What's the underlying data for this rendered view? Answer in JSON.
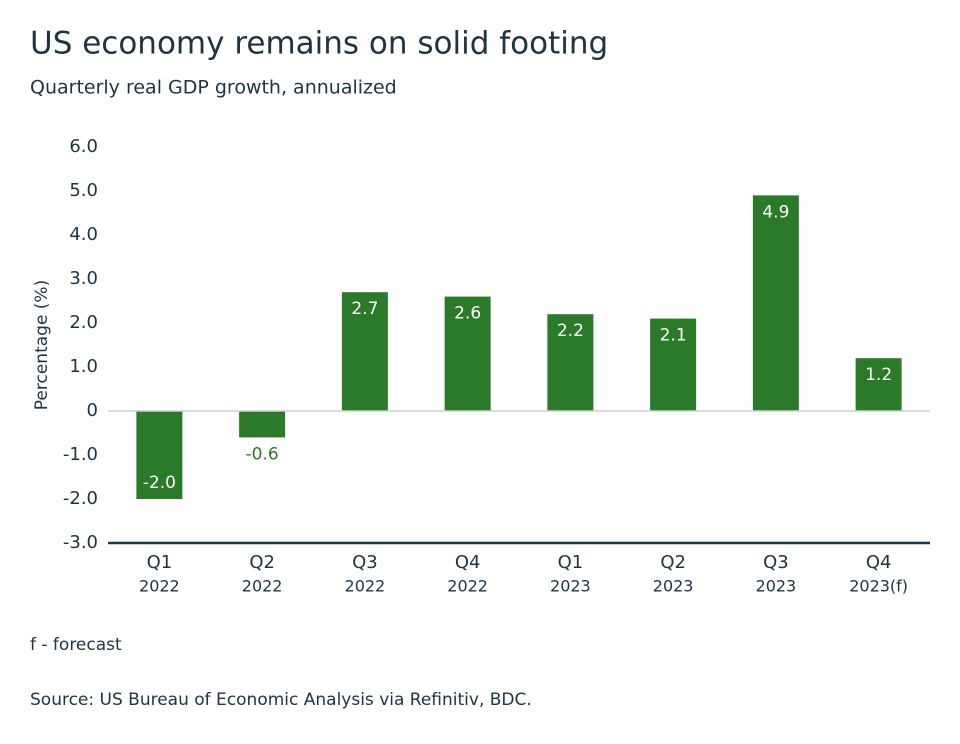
{
  "chart_data": {
    "type": "bar",
    "title": "US economy remains on solid footing",
    "subtitle": "Quarterly real GDP growth, annualized",
    "y_axis_label": "Percentage (%)",
    "categories": [
      "Q1",
      "Q2",
      "Q3",
      "Q4",
      "Q1",
      "Q2",
      "Q3",
      "Q4"
    ],
    "category_years": [
      "2022",
      "2022",
      "2022",
      "2022",
      "2023",
      "2023",
      "2023",
      "2023(f)"
    ],
    "values": [
      -2.0,
      -0.6,
      2.7,
      2.6,
      2.2,
      2.1,
      4.9,
      1.2
    ],
    "value_labels": [
      "-2.0",
      "-0.6",
      "2.7",
      "2.6",
      "2.2",
      "2.1",
      "4.9",
      "1.2"
    ],
    "color": "#2a7a2a",
    "ylim": [
      -3,
      6
    ],
    "yticks": [
      {
        "value": -3,
        "label": "-3.0"
      },
      {
        "value": -2,
        "label": "-2.0"
      },
      {
        "value": -1,
        "label": "-1.0"
      },
      0,
      {
        "value": 1,
        "label": "1.0"
      },
      {
        "value": 2,
        "label": "2.0"
      },
      {
        "value": 3,
        "label": "3.0"
      },
      {
        "value": 4,
        "label": "4.0"
      },
      {
        "value": 5,
        "label": "5.0"
      },
      {
        "value": 6,
        "label": "6.0"
      }
    ],
    "grid": false,
    "notes": [
      "f - forecast",
      "Source: US Bureau of Economic Analysis via Refinitiv, BDC."
    ]
  }
}
